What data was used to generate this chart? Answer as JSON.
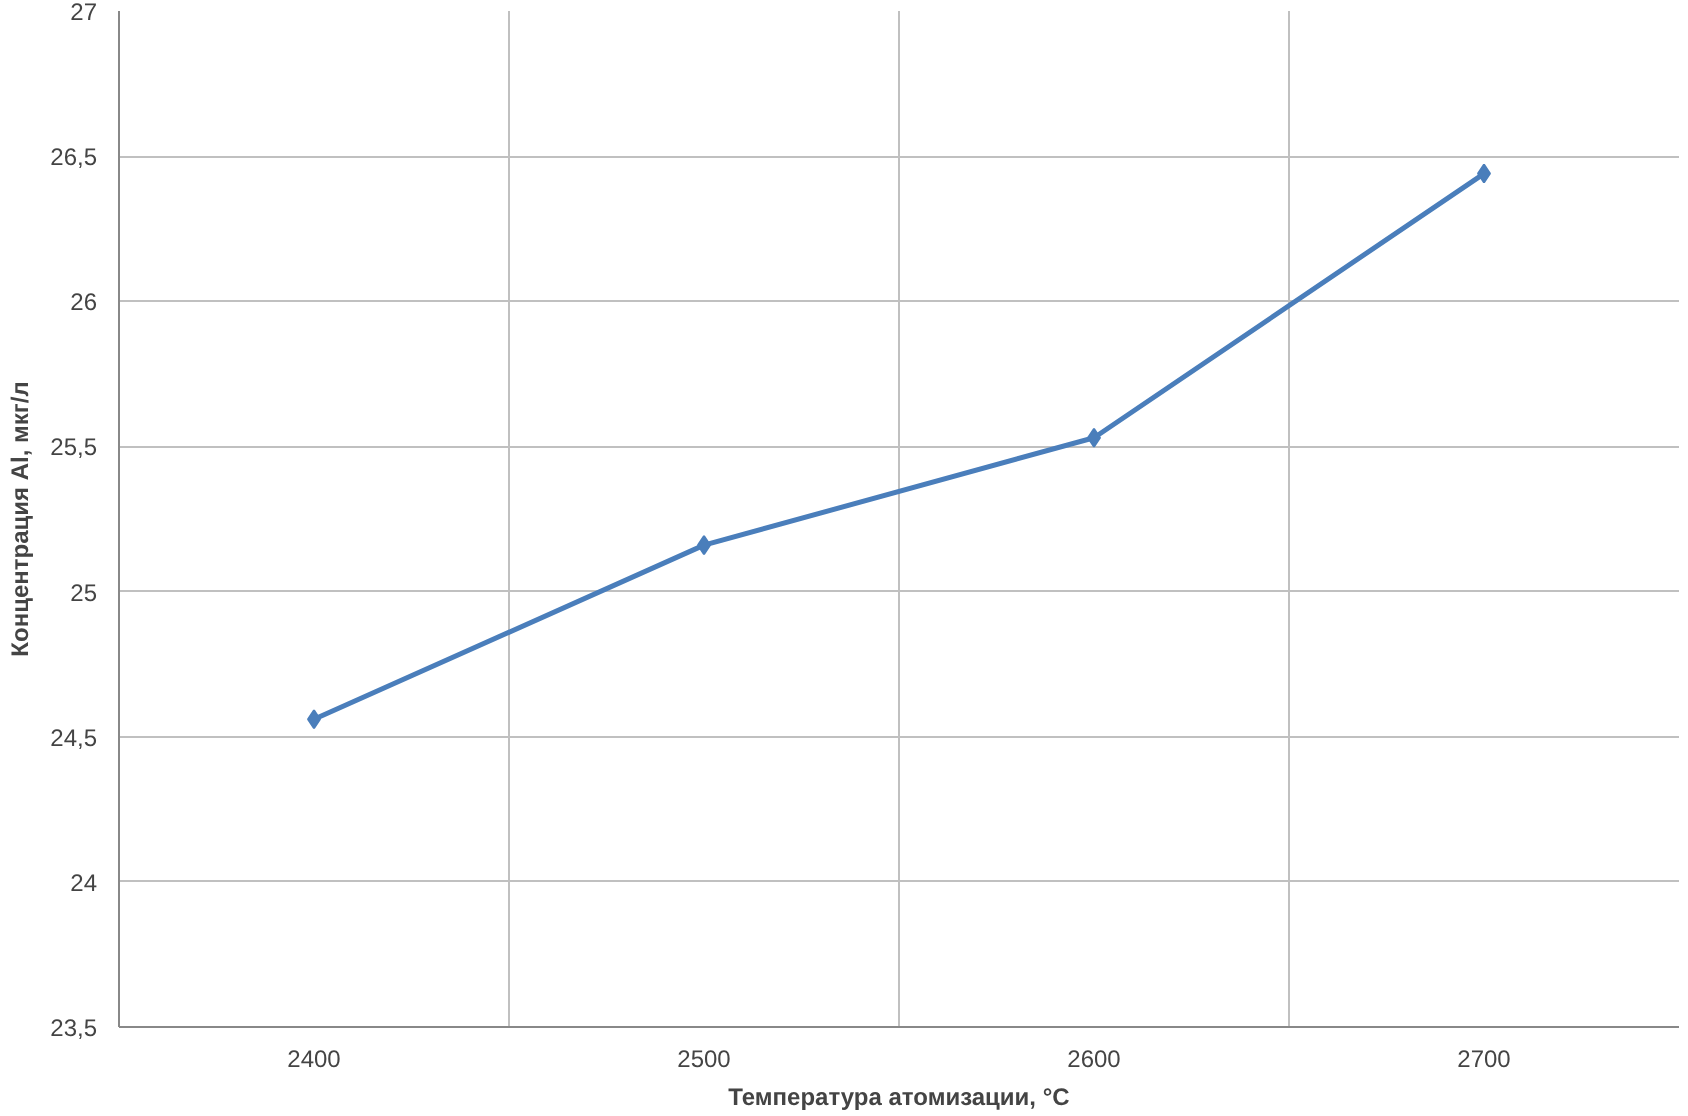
{
  "chart_data": {
    "type": "line",
    "xlabel": "Температура атомизации, °С",
    "ylabel": "Концентрация Al, мкг/л",
    "categories": [
      "2400",
      "2500",
      "2600",
      "2700"
    ],
    "series": [
      {
        "color": "#4a7ebb",
        "values": [
          24.56,
          25.16,
          25.53,
          26.44
        ]
      }
    ],
    "ylim": [
      23.5,
      27
    ],
    "yticks": [
      {
        "value": 23.5,
        "label": "23,5"
      },
      24,
      {
        "value": 24.5,
        "label": "24,5"
      },
      25,
      {
        "value": 25.5,
        "label": "25,5"
      },
      26,
      {
        "value": 26.5,
        "label": "26,5"
      },
      27
    ],
    "grid": true,
    "marker": "diamond",
    "line_style": "solid"
  }
}
